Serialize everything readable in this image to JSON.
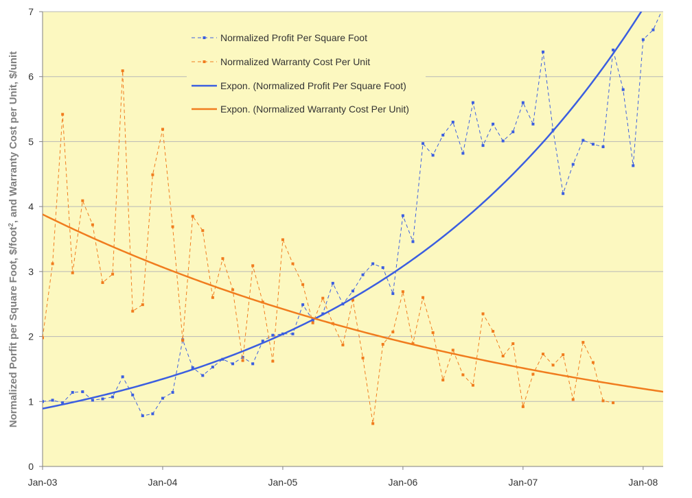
{
  "chart_data": {
    "type": "line",
    "ylabel": "Normalized Porfit per Square Foot, $/foot², and Warranty Cost per Unit, $/unit",
    "ylabel_parts": {
      "before_sup": "Normalized Porfit per Square Foot, $/foot",
      "sup": "2",
      "after_sup": ", and Warranty Cost per Unit, $/unit"
    },
    "ylim": [
      0,
      7
    ],
    "y_ticks": [
      "0",
      "1",
      "2",
      "3",
      "4",
      "5",
      "6",
      "7"
    ],
    "xlim": [
      "2003-01",
      "2008-03"
    ],
    "x_ticks": [
      {
        "label": "Jan-03",
        "date": "2003-01"
      },
      {
        "label": "Jan-04",
        "date": "2004-01"
      },
      {
        "label": "Jan-05",
        "date": "2005-01"
      },
      {
        "label": "Jan-06",
        "date": "2006-01"
      },
      {
        "label": "Jan-07",
        "date": "2007-01"
      },
      {
        "label": "Jan-08",
        "date": "2008-01"
      }
    ],
    "grid": "horizontal",
    "legend_position": "top-center",
    "plot_background": "#fcf8c0",
    "series": [
      {
        "name": "Normalized Profit Per Square Foot",
        "color": "#3b5ee0",
        "style": "dashed-with-markers",
        "x": [
          "2003-01",
          "2003-02",
          "2003-03",
          "2003-04",
          "2003-05",
          "2003-06",
          "2003-07",
          "2003-08",
          "2003-09",
          "2003-10",
          "2003-11",
          "2003-12",
          "2004-01",
          "2004-02",
          "2004-03",
          "2004-04",
          "2004-05",
          "2004-06",
          "2004-07",
          "2004-08",
          "2004-09",
          "2004-10",
          "2004-11",
          "2004-12",
          "2005-01",
          "2005-02",
          "2005-03",
          "2005-04",
          "2005-05",
          "2005-06",
          "2005-07",
          "2005-08",
          "2005-09",
          "2005-10",
          "2005-11",
          "2005-12",
          "2006-01",
          "2006-02",
          "2006-03",
          "2006-04",
          "2006-05",
          "2006-06",
          "2006-07",
          "2006-08",
          "2006-09",
          "2006-10",
          "2006-11",
          "2006-12",
          "2007-01",
          "2007-02",
          "2007-03",
          "2007-04",
          "2007-05",
          "2007-06",
          "2007-07",
          "2007-08",
          "2007-09",
          "2007-10",
          "2007-11",
          "2007-12",
          "2008-01",
          "2008-02",
          "2008-03"
        ],
        "values": [
          1.0,
          1.02,
          0.98,
          1.14,
          1.15,
          1.02,
          1.04,
          1.07,
          1.38,
          1.1,
          0.78,
          0.81,
          1.05,
          1.14,
          1.95,
          1.52,
          1.4,
          1.53,
          1.65,
          1.58,
          1.68,
          1.58,
          1.93,
          2.02,
          2.04,
          2.04,
          2.49,
          2.25,
          2.35,
          2.82,
          2.5,
          2.7,
          2.95,
          3.12,
          3.06,
          2.66,
          3.86,
          3.46,
          4.97,
          4.79,
          5.1,
          5.3,
          4.82,
          5.6,
          4.94,
          5.27,
          5.01,
          5.15,
          5.6,
          5.27,
          6.38,
          5.18,
          4.2,
          4.65,
          5.02,
          4.96,
          4.92,
          6.41,
          5.8,
          4.63,
          6.57,
          6.72,
          7.06
        ]
      },
      {
        "name": "Normalized Warranty Cost Per Unit",
        "color": "#f07c1e",
        "style": "dashed-with-markers",
        "x": [
          "2003-01",
          "2003-02",
          "2003-03",
          "2003-04",
          "2003-05",
          "2003-06",
          "2003-07",
          "2003-08",
          "2003-09",
          "2003-10",
          "2003-11",
          "2003-12",
          "2004-01",
          "2004-02",
          "2004-03",
          "2004-04",
          "2004-05",
          "2004-06",
          "2004-07",
          "2004-08",
          "2004-09",
          "2004-10",
          "2004-11",
          "2004-12",
          "2005-01",
          "2005-02",
          "2005-03",
          "2005-04",
          "2005-05",
          "2005-06",
          "2005-07",
          "2005-08",
          "2005-09",
          "2005-10",
          "2005-11",
          "2005-12",
          "2006-01",
          "2006-02",
          "2006-03",
          "2006-04",
          "2006-05",
          "2006-06",
          "2006-07",
          "2006-08",
          "2006-09",
          "2006-10",
          "2006-11",
          "2006-12",
          "2007-01",
          "2007-02",
          "2007-03",
          "2007-04",
          "2007-05",
          "2007-06",
          "2007-07",
          "2007-08",
          "2007-09",
          "2007-10",
          "2007-11"
        ],
        "values": [
          1.98,
          3.12,
          5.42,
          2.98,
          4.09,
          3.72,
          2.83,
          2.96,
          6.09,
          2.39,
          2.49,
          4.49,
          5.19,
          3.69,
          1.94,
          3.85,
          3.63,
          2.6,
          3.2,
          2.72,
          1.63,
          3.09,
          2.53,
          1.62,
          3.49,
          3.12,
          2.8,
          2.21,
          2.59,
          2.2,
          1.87,
          2.56,
          1.67,
          0.66,
          1.88,
          2.07,
          2.69,
          1.89,
          2.6,
          2.06,
          1.33,
          1.79,
          1.41,
          1.25,
          2.35,
          2.08,
          1.7,
          1.89,
          0.92,
          1.42,
          1.73,
          1.56,
          1.72,
          1.03,
          1.91,
          1.6,
          1.01,
          0.98,
          null
        ]
      },
      {
        "name": "Expon. (Normalized Profit Per Square Foot)",
        "color": "#3b5ee0",
        "style": "solid-trendline",
        "trend": "exponential",
        "x_range": [
          "2003-01",
          "2008-03"
        ],
        "values_at_ends": [
          0.89,
          7.55
        ]
      },
      {
        "name": "Expon. (Normalized Warranty Cost Per Unit)",
        "color": "#f07c1e",
        "style": "solid-trendline",
        "trend": "exponential",
        "x_range": [
          "2003-01",
          "2008-03"
        ],
        "values_at_ends": [
          3.88,
          1.15
        ]
      }
    ]
  }
}
